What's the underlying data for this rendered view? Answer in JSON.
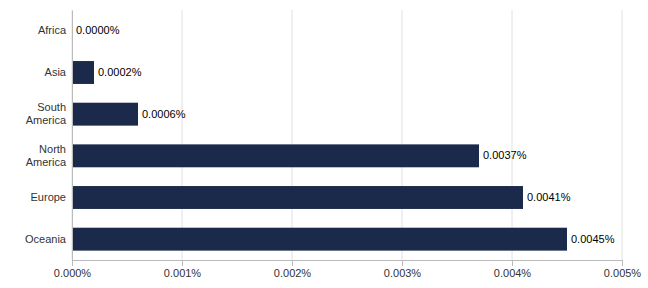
{
  "chart_data": {
    "type": "bar",
    "orientation": "horizontal",
    "categories": [
      "Africa",
      "Asia",
      "South\nAmerica",
      "North\nAmerica",
      "Europe",
      "Oceania"
    ],
    "values": [
      0,
      2e-06,
      6e-06,
      3.7e-05,
      4.1e-05,
      4.5e-05
    ],
    "value_labels": [
      "0.0000%",
      "0.0002%",
      "0.0006%",
      "0.0037%",
      "0.0041%",
      "0.0045%"
    ],
    "data_labels": true,
    "color": "#1b2a4a",
    "xlim": [
      0,
      5e-05
    ],
    "xticks": [
      {
        "value": 0,
        "label": "0.000%"
      },
      {
        "value": 1e-05,
        "label": "0.001%"
      },
      {
        "value": 2e-05,
        "label": "0.002%"
      },
      {
        "value": 3e-05,
        "label": "0.003%"
      },
      {
        "value": 4e-05,
        "label": "0.004%"
      },
      {
        "value": 5e-05,
        "label": "0.005%"
      }
    ],
    "grid": true
  }
}
